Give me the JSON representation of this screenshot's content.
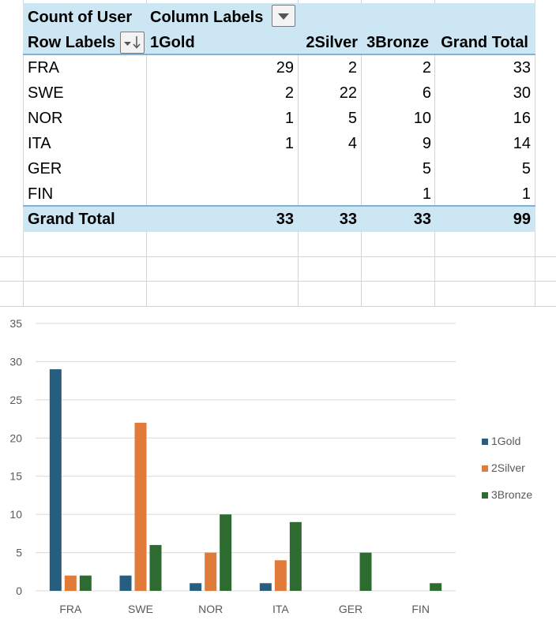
{
  "pivot": {
    "value_label": "Count of User",
    "column_labels": "Column Labels",
    "row_labels": "Row Labels",
    "columns": [
      "1Gold",
      "2Silver",
      "3Bronze",
      "Grand Total"
    ],
    "rows": [
      {
        "label": "FRA",
        "values": [
          "29",
          "2",
          "2",
          "33"
        ]
      },
      {
        "label": "SWE",
        "values": [
          "2",
          "22",
          "6",
          "30"
        ]
      },
      {
        "label": "NOR",
        "values": [
          "1",
          "5",
          "10",
          "16"
        ]
      },
      {
        "label": "ITA",
        "values": [
          "1",
          "4",
          "9",
          "14"
        ]
      },
      {
        "label": "GER",
        "values": [
          "",
          "",
          "5",
          "5"
        ]
      },
      {
        "label": "FIN",
        "values": [
          "",
          "",
          "1",
          "1"
        ]
      }
    ],
    "grand_total": {
      "label": "Grand Total",
      "values": [
        "33",
        "33",
        "33",
        "99"
      ]
    }
  },
  "colors": {
    "gold": "#255e7e",
    "silver": "#e07b39",
    "bronze": "#2e6b30",
    "header_bg": "#cde6f4"
  },
  "chart_data": {
    "type": "bar",
    "categories": [
      "FRA",
      "SWE",
      "NOR",
      "ITA",
      "GER",
      "FIN"
    ],
    "series": [
      {
        "name": "1Gold",
        "values": [
          29,
          2,
          1,
          1,
          0,
          0
        ]
      },
      {
        "name": "2Silver",
        "values": [
          2,
          22,
          5,
          4,
          0,
          0
        ]
      },
      {
        "name": "3Bronze",
        "values": [
          2,
          6,
          10,
          9,
          5,
          1
        ]
      }
    ],
    "yticks": [
      "0",
      "5",
      "10",
      "15",
      "20",
      "25",
      "30",
      "35"
    ],
    "ylim": [
      0,
      35
    ],
    "grid": true,
    "legend": "right"
  }
}
